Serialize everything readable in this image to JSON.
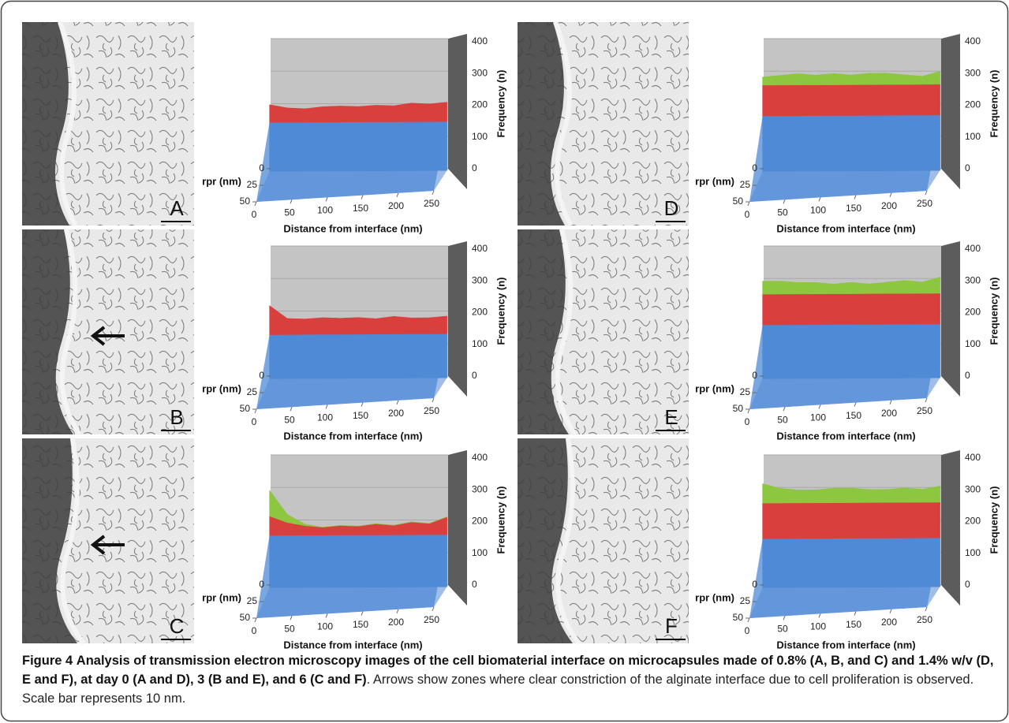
{
  "panels": [
    {
      "letter": "A",
      "arrow": false,
      "chart": {
        "type": "surface3d",
        "ylabel": "Frequency (n)",
        "xlabel": "Distance from interface (nm)",
        "zlabel": "rpr (nm)",
        "xlim": [
          0,
          250
        ],
        "xticks": [
          0,
          50,
          100,
          150,
          200,
          250
        ],
        "ylim": [
          0,
          400
        ],
        "yticks": [
          0,
          100,
          200,
          300,
          400
        ],
        "zlim": [
          0,
          50
        ],
        "zticks": [
          0,
          25,
          50
        ],
        "x": [
          0,
          25,
          50,
          75,
          100,
          125,
          150,
          175,
          200,
          225,
          250
        ],
        "series": [
          {
            "color": "#4f8ad6",
            "values": [
              150,
              150,
              150,
              150,
              150,
              150,
              150,
              150,
              150,
              150,
              150
            ]
          },
          {
            "color": "#d9403d",
            "values": [
              55,
              45,
              42,
              48,
              50,
              48,
              52,
              50,
              58,
              55,
              60
            ]
          }
        ]
      }
    },
    {
      "letter": "B",
      "arrow": true,
      "chart": {
        "type": "surface3d",
        "ylabel": "Frequency (n)",
        "xlabel": "Distance from interface (nm)",
        "zlabel": "rpr (nm)",
        "xlim": [
          0,
          250
        ],
        "xticks": [
          0,
          50,
          100,
          150,
          200,
          250
        ],
        "ylim": [
          0,
          400
        ],
        "yticks": [
          0,
          100,
          200,
          300,
          400
        ],
        "zlim": [
          0,
          50
        ],
        "zticks": [
          0,
          25,
          50
        ],
        "x": [
          0,
          25,
          50,
          75,
          100,
          125,
          150,
          175,
          200,
          225,
          250
        ],
        "series": [
          {
            "color": "#4f8ad6",
            "values": [
              135,
              135,
              135,
              135,
              135,
              135,
              135,
              135,
              135,
              135,
              135
            ]
          },
          {
            "color": "#d9403d",
            "values": [
              90,
              50,
              48,
              52,
              50,
              52,
              48,
              55,
              50,
              50,
              55
            ]
          }
        ]
      }
    },
    {
      "letter": "C",
      "arrow": true,
      "chart": {
        "type": "surface3d",
        "ylabel": "Frequency (n)",
        "xlabel": "Distance from interface (nm)",
        "zlabel": "rpr (nm)",
        "xlim": [
          0,
          250
        ],
        "xticks": [
          0,
          50,
          100,
          150,
          200,
          250
        ],
        "ylim": [
          0,
          400
        ],
        "yticks": [
          0,
          100,
          200,
          300,
          400
        ],
        "zlim": [
          0,
          50
        ],
        "zticks": [
          0,
          25,
          50
        ],
        "x": [
          0,
          25,
          50,
          75,
          100,
          125,
          150,
          175,
          200,
          225,
          250
        ],
        "series": [
          {
            "color": "#4f8ad6",
            "values": [
              160,
              160,
              160,
              160,
              160,
              160,
              160,
              160,
              160,
              160,
              160
            ]
          },
          {
            "color": "#d9403d",
            "values": [
              60,
              40,
              30,
              25,
              30,
              28,
              35,
              30,
              40,
              35,
              55
            ]
          },
          {
            "color": "#8dc63f",
            "values": [
              80,
              25,
              5,
              0,
              0,
              0,
              0,
              0,
              0,
              0,
              0
            ]
          }
        ]
      }
    },
    {
      "letter": "D",
      "arrow": false,
      "chart": {
        "type": "surface3d",
        "ylabel": "Frequency (n)",
        "xlabel": "Distance from interface (nm)",
        "zlabel": "rpr (nm)",
        "xlim": [
          0,
          250
        ],
        "xticks": [
          0,
          50,
          100,
          150,
          200,
          250
        ],
        "ylim": [
          0,
          400
        ],
        "yticks": [
          0,
          100,
          200,
          300,
          400
        ],
        "zlim": [
          0,
          50
        ],
        "zticks": [
          0,
          25,
          50
        ],
        "x": [
          0,
          25,
          50,
          75,
          100,
          125,
          150,
          175,
          200,
          225,
          250
        ],
        "series": [
          {
            "color": "#4f8ad6",
            "values": [
              170,
              170,
              170,
              170,
              170,
              170,
              170,
              170,
              170,
              170,
              170
            ]
          },
          {
            "color": "#d9403d",
            "values": [
              95,
              95,
              95,
              95,
              95,
              95,
              95,
              95,
              95,
              95,
              95
            ]
          },
          {
            "color": "#8dc63f",
            "values": [
              25,
              30,
              35,
              30,
              35,
              30,
              35,
              35,
              30,
              25,
              40
            ]
          }
        ]
      }
    },
    {
      "letter": "E",
      "arrow": false,
      "chart": {
        "type": "surface3d",
        "ylabel": "Frequency (n)",
        "xlabel": "Distance from interface (nm)",
        "zlabel": "rpr (nm)",
        "xlim": [
          0,
          250
        ],
        "xticks": [
          0,
          50,
          100,
          150,
          200,
          250
        ],
        "ylim": [
          0,
          400
        ],
        "yticks": [
          0,
          100,
          200,
          300,
          400
        ],
        "zlim": [
          0,
          50
        ],
        "zticks": [
          0,
          25,
          50
        ],
        "x": [
          0,
          25,
          50,
          75,
          100,
          125,
          150,
          175,
          200,
          225,
          250
        ],
        "series": [
          {
            "color": "#4f8ad6",
            "values": [
              165,
              165,
              165,
              165,
              165,
              165,
              165,
              165,
              165,
              165,
              165
            ]
          },
          {
            "color": "#d9403d",
            "values": [
              95,
              95,
              95,
              95,
              95,
              95,
              95,
              95,
              95,
              95,
              95
            ]
          },
          {
            "color": "#8dc63f",
            "values": [
              40,
              40,
              35,
              35,
              30,
              35,
              30,
              35,
              40,
              35,
              50
            ]
          }
        ]
      }
    },
    {
      "letter": "F",
      "arrow": false,
      "chart": {
        "type": "surface3d",
        "ylabel": "Frequency (n)",
        "xlabel": "Distance from interface (nm)",
        "zlabel": "rpr (nm)",
        "xlim": [
          0,
          250
        ],
        "xticks": [
          0,
          50,
          100,
          150,
          200,
          250
        ],
        "ylim": [
          0,
          400
        ],
        "yticks": [
          0,
          100,
          200,
          300,
          400
        ],
        "zlim": [
          0,
          50
        ],
        "zticks": [
          0,
          25,
          50
        ],
        "x": [
          0,
          25,
          50,
          75,
          100,
          125,
          150,
          175,
          200,
          225,
          250
        ],
        "series": [
          {
            "color": "#4f8ad6",
            "values": [
              150,
              150,
              150,
              150,
              150,
              150,
              150,
              150,
              150,
              150,
              150
            ]
          },
          {
            "color": "#d9403d",
            "values": [
              110,
              110,
              110,
              110,
              110,
              110,
              110,
              110,
              110,
              110,
              110
            ]
          },
          {
            "color": "#8dc63f",
            "values": [
              60,
              45,
              40,
              40,
              45,
              45,
              40,
              40,
              45,
              40,
              50
            ]
          }
        ]
      }
    }
  ],
  "caption": {
    "label": "Figure 4",
    "bold": "Analysis of transmission electron microscopy images of the cell biomaterial interface on microcapsules made of 0.8% (A, B, and C) and 1.4% w/v (D, E and F), at day 0 (A and D), 3 (B and E), and 6 (C and F)",
    "text": ". Arrows show zones where clear constriction of the alginate interface due to cell proliferation is observed. Scale bar represents 10 nm."
  }
}
